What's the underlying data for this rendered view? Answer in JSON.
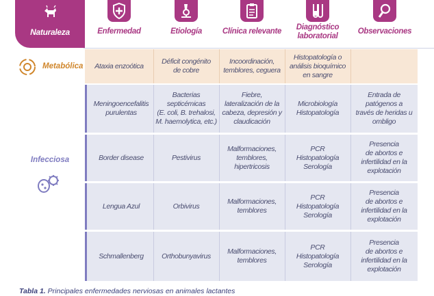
{
  "header": {
    "nature": "Naturaleza",
    "columns": [
      {
        "label": "Enfermedad",
        "icon": "medical-shield-icon"
      },
      {
        "label": "Etiología",
        "icon": "microscope-icon"
      },
      {
        "label": "Clínica relevante",
        "icon": "clipboard-icon"
      },
      {
        "label": "Diagnóstico\nlaboratorial",
        "icon": "test-tubes-icon"
      },
      {
        "label": "Observaciones",
        "icon": "magnifier-icon"
      }
    ]
  },
  "groups": {
    "metabolic": "Metabólica",
    "infectious": "Infecciosa"
  },
  "rows": {
    "metabolic": [
      {
        "disease": "Ataxia enzoótica",
        "etiology": "Déficit congénito\nde cobre",
        "clinical": "Incoordinación,\ntemblores, ceguera",
        "diagnosis": "Histopatología o\nanálisis bioquímico\nen sangre",
        "notes": ""
      }
    ],
    "infectious": [
      {
        "disease": "Meningoencefalitis\npurulentas",
        "etiology": "Bacterias\nsepticémicas\n(E. coli, B. trehalosi,\nM. haemolytica, etc.)",
        "clinical": "Fiebre,\nlateralización de la\ncabeza, depresión y\nclaudicación",
        "diagnosis": "Microbiología\nHistopatología",
        "notes": "Entrada de\npatógenos a\ntravés de heridas u\nombligo"
      },
      {
        "disease": "Border disease",
        "etiology": "Pestivirus",
        "clinical": "Malformaciones,\ntemblores,\nhipertricosis",
        "diagnosis": "PCR\nHistopatología\nSerología",
        "notes": "Presencia\nde abortos e\ninfertilidad en la\nexplotación"
      },
      {
        "disease": "Lengua Azul",
        "etiology": "Orbivirus",
        "clinical": "Malformaciones,\ntemblores",
        "diagnosis": "PCR\nHistopatología\nSerología",
        "notes": "Presencia\nde abortos e\ninfertilidad en la\nexplotación"
      },
      {
        "disease": "Schmallenberg",
        "etiology": "Orthobunyavirus",
        "clinical": "Malformaciones,\ntemblores",
        "diagnosis": "PCR\nHistopatología\nSerología",
        "notes": "Presencia\nde abortos e\ninfertilidad en la\nexplotación"
      }
    ]
  },
  "caption": {
    "label": "Tabla 1.",
    "text": "Principales enfermedades nerviosas en animales lactantes"
  },
  "colors": {
    "magenta": "#a93883",
    "orange": "#d0862b",
    "violet": "#7f7cc0",
    "metabolic_bg": "#f8e7d6",
    "infectious_bg": "#e5e7f1"
  }
}
